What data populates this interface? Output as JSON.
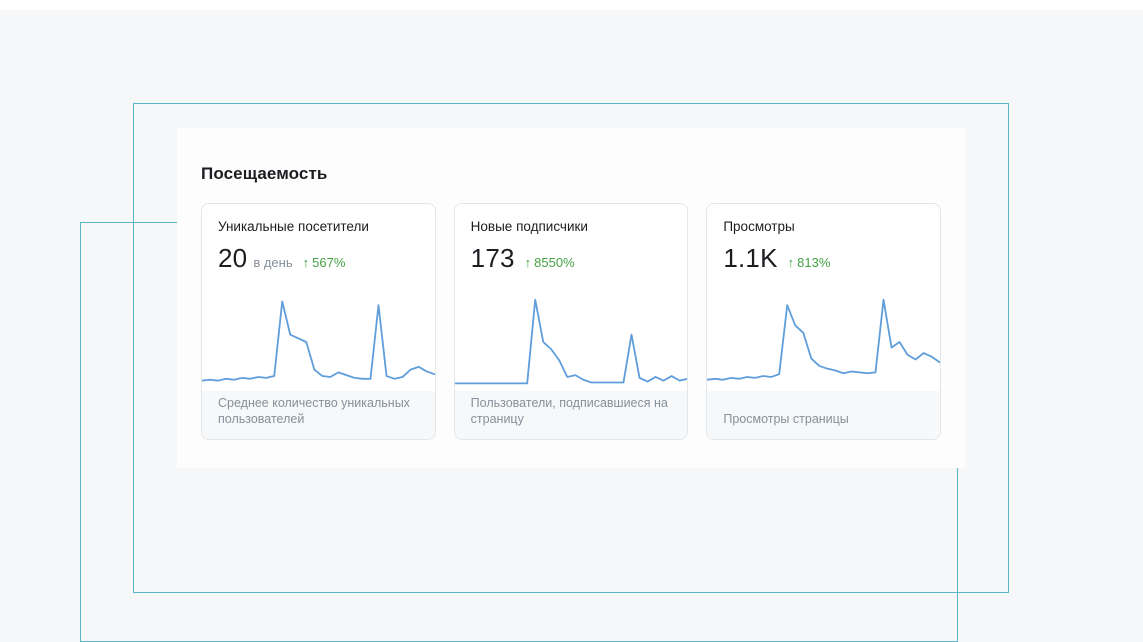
{
  "colors": {
    "page-bg": "#f6f7f9",
    "top-strip": "#ffffff",
    "frame-line": "#5ab6c6",
    "panel-bg": "#fdfdfd",
    "card-bg": "#ffffff",
    "card-border": "#e4e7ea",
    "footer-bg": "#f7f8fa",
    "text-primary": "#1c1d21",
    "text-secondary": "#85909b",
    "accent-green": "#44a244",
    "chart-line": "#5f9ddb"
  },
  "panel": {
    "title": "Посещаемость"
  },
  "cards": [
    {
      "title": "Уникальные посетители",
      "value": "20",
      "value_suffix": "в день",
      "change_arrow": "↑",
      "change": "567%",
      "footer": "Среднее количество уникальных пользователей"
    },
    {
      "title": "Новые подписчики",
      "value": "173",
      "value_suffix": "",
      "change_arrow": "↑",
      "change": "8550%",
      "footer": "Пользователи, подписавшиеся на страницу"
    },
    {
      "title": "Просмотры",
      "value": "1.1K",
      "value_suffix": "",
      "change_arrow": "↑",
      "change": "813%",
      "footer": "Просмотры страницы"
    }
  ],
  "chart_data": [
    {
      "type": "line",
      "name": "Уникальные посетители",
      "ylim": [
        0,
        100
      ],
      "values": [
        8,
        9,
        8,
        10,
        9,
        11,
        10,
        12,
        11,
        13,
        94,
        58,
        54,
        50,
        20,
        13,
        12,
        17,
        14,
        11,
        10,
        10,
        90,
        13,
        10,
        12,
        20,
        23,
        18,
        15
      ]
    },
    {
      "type": "line",
      "name": "Новые подписчики",
      "ylim": [
        0,
        100
      ],
      "values": [
        5,
        5,
        5,
        5,
        5,
        5,
        5,
        5,
        5,
        5,
        96,
        50,
        42,
        30,
        12,
        14,
        9,
        6,
        6,
        6,
        6,
        6,
        58,
        11,
        7,
        12,
        8,
        13,
        8,
        10
      ]
    },
    {
      "type": "line",
      "name": "Просмотры",
      "ylim": [
        0,
        100
      ],
      "values": [
        9,
        10,
        9,
        11,
        10,
        12,
        11,
        13,
        12,
        15,
        90,
        68,
        60,
        32,
        24,
        21,
        19,
        16,
        18,
        17,
        16,
        17,
        96,
        44,
        50,
        36,
        31,
        38,
        34,
        28
      ]
    }
  ]
}
